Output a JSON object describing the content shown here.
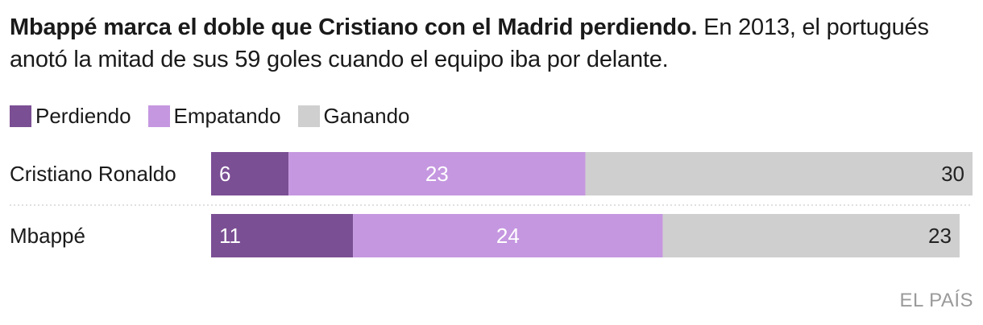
{
  "headline": {
    "lead": "Mbappé marca el doble que Cristiano con el Madrid perdiendo.",
    "rest": "En 2013, el portugués anotó la mitad de sus 59 goles cuando el equipo iba por delante."
  },
  "colors": {
    "perdiendo": "#7b4f94",
    "empatando": "#c597e0",
    "ganando": "#cfcfcf",
    "label_light": "#ffffff",
    "label_dark": "#222222"
  },
  "legend": [
    {
      "label": "Perdiendo",
      "color": "#7b4f94"
    },
    {
      "label": "Empatando",
      "color": "#c597e0"
    },
    {
      "label": "Ganando",
      "color": "#cfcfcf"
    }
  ],
  "chart_data": {
    "type": "bar",
    "orientation": "horizontal",
    "stacked": true,
    "categories": [
      "Cristiano Ronaldo",
      "Mbappé"
    ],
    "series": [
      {
        "name": "Perdiendo",
        "values": [
          6,
          11
        ]
      },
      {
        "name": "Empatando",
        "values": [
          23,
          24
        ]
      },
      {
        "name": "Ganando",
        "values": [
          30,
          23
        ]
      }
    ],
    "xlim": [
      0,
      59
    ],
    "title": "Mbappé marca el doble que Cristiano con el Madrid perdiendo.",
    "xlabel": "",
    "ylabel": "",
    "grid": false,
    "legend_position": "top-left"
  },
  "source": "EL PAÍS"
}
